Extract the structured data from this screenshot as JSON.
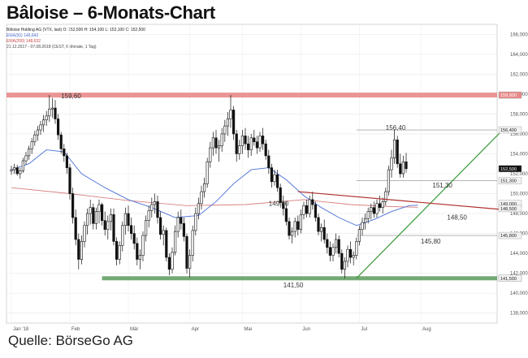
{
  "title": "Bâloise – 6-Monats-Chart",
  "source": "Quelle: BörseGo AG",
  "legend": {
    "line1": "Bâloise Holding AG (VTX, last)  O: 152,500  H: 154,100  L: 152,100  C: 152,500",
    "line2": "EMA(50)  148,843",
    "line3": "EMA(200)  148,632",
    "line4": "21.12.2017 - 07.08.2018  (CEST, 6 Monate, 1 Tag)"
  },
  "colors": {
    "resistance": "#e88a8a",
    "support": "#5a9a5a",
    "uptrend": "#3a9a3a",
    "downtrend": "#b03030",
    "ema50": "#4a6fd8",
    "ema200": "#d88080",
    "candle": "#111111",
    "price_tag": "#111111"
  },
  "chart_data": {
    "type": "candlestick",
    "title": "Bâloise – 6-Monats-Chart",
    "ylim": [
      137.0,
      167.0
    ],
    "y_ticks": [
      {
        "value": 138.0,
        "label": "138,000"
      },
      {
        "value": 140.0,
        "label": "140,000"
      },
      {
        "value": 142.0,
        "label": "142,000"
      },
      {
        "value": 144.0,
        "label": "144,000"
      },
      {
        "value": 146.0,
        "label": "146,000"
      },
      {
        "value": 148.0,
        "label": "148,000"
      },
      {
        "value": 150.0,
        "label": "150,000"
      },
      {
        "value": 152.0,
        "label": "152,000"
      },
      {
        "value": 154.0,
        "label": "154,000"
      },
      {
        "value": 156.0,
        "label": "156,000"
      },
      {
        "value": 158.0,
        "label": "158,000"
      },
      {
        "value": 160.0,
        "label": "160,000"
      },
      {
        "value": 162.0,
        "label": "162,000"
      },
      {
        "value": 164.0,
        "label": "164,000"
      },
      {
        "value": 166.0,
        "label": "166,000"
      }
    ],
    "x_ticks": [
      {
        "index": 0,
        "label": "Jan '18"
      },
      {
        "index": 20,
        "label": "Feb"
      },
      {
        "index": 40,
        "label": "Mär"
      },
      {
        "index": 61,
        "label": "Apr"
      },
      {
        "index": 79,
        "label": "Mai"
      },
      {
        "index": 99,
        "label": "Jun"
      },
      {
        "index": 119,
        "label": "Jul"
      },
      {
        "index": 140,
        "label": "Aug"
      }
    ],
    "x_count": 165,
    "candles": [
      [
        152.3,
        152.8,
        151.9,
        152.4
      ],
      [
        152.4,
        153.0,
        152.0,
        152.6
      ],
      [
        152.6,
        152.9,
        151.8,
        152.0
      ],
      [
        152.0,
        152.6,
        151.5,
        152.3
      ],
      [
        152.3,
        153.6,
        152.1,
        153.3
      ],
      [
        153.3,
        154.2,
        152.9,
        153.8
      ],
      [
        153.8,
        154.8,
        153.4,
        154.5
      ],
      [
        154.5,
        155.6,
        154.0,
        155.2
      ],
      [
        155.2,
        156.3,
        154.8,
        155.9
      ],
      [
        155.9,
        156.8,
        155.3,
        156.4
      ],
      [
        156.4,
        157.3,
        155.9,
        156.9
      ],
      [
        156.9,
        157.9,
        156.2,
        157.4
      ],
      [
        157.4,
        158.3,
        156.8,
        157.8
      ],
      [
        157.8,
        159.9,
        157.2,
        158.5
      ],
      [
        158.5,
        159.6,
        157.6,
        158.6
      ],
      [
        158.6,
        159.4,
        157.0,
        157.5
      ],
      [
        157.5,
        158.0,
        155.4,
        155.9
      ],
      [
        155.9,
        156.2,
        154.0,
        154.5
      ],
      [
        154.5,
        155.0,
        153.2,
        153.8
      ],
      [
        153.8,
        154.1,
        152.0,
        152.6
      ],
      [
        152.6,
        153.0,
        149.4,
        150.0
      ],
      [
        150.0,
        150.6,
        147.0,
        147.6
      ],
      [
        147.6,
        148.4,
        144.8,
        145.4
      ],
      [
        145.4,
        146.0,
        142.4,
        143.4
      ],
      [
        143.4,
        145.8,
        142.9,
        145.2
      ],
      [
        145.2,
        147.2,
        144.6,
        146.8
      ],
      [
        146.8,
        148.5,
        145.9,
        148.0
      ],
      [
        148.0,
        149.4,
        146.9,
        148.6
      ],
      [
        148.6,
        149.0,
        146.4,
        147.0
      ],
      [
        147.0,
        148.6,
        146.4,
        148.2
      ],
      [
        148.2,
        149.4,
        147.0,
        148.9
      ],
      [
        148.9,
        149.1,
        146.8,
        147.3
      ],
      [
        147.3,
        148.2,
        145.8,
        146.4
      ],
      [
        146.4,
        147.8,
        145.4,
        147.2
      ],
      [
        147.2,
        148.5,
        146.3,
        147.9
      ],
      [
        147.9,
        148.5,
        144.8,
        145.2
      ],
      [
        145.2,
        145.6,
        142.8,
        143.4
      ],
      [
        143.4,
        145.2,
        142.9,
        144.8
      ],
      [
        144.8,
        147.2,
        144.2,
        146.8
      ],
      [
        146.8,
        148.6,
        145.9,
        148.0
      ],
      [
        148.0,
        148.8,
        146.2,
        146.8
      ],
      [
        146.8,
        147.6,
        145.4,
        146.0
      ],
      [
        146.0,
        146.8,
        144.4,
        145.0
      ],
      [
        145.0,
        145.6,
        142.8,
        143.4
      ],
      [
        143.4,
        144.4,
        142.4,
        143.8
      ],
      [
        143.8,
        146.2,
        143.2,
        145.8
      ],
      [
        145.8,
        147.8,
        145.2,
        147.3
      ],
      [
        147.3,
        148.8,
        146.6,
        148.3
      ],
      [
        148.3,
        149.6,
        147.6,
        148.9
      ],
      [
        148.9,
        150.0,
        148.0,
        149.2
      ],
      [
        149.2,
        149.8,
        147.0,
        147.6
      ],
      [
        147.6,
        148.2,
        145.4,
        145.9
      ],
      [
        145.9,
        146.8,
        144.8,
        146.3
      ],
      [
        146.3,
        146.6,
        143.2,
        143.6
      ],
      [
        143.6,
        144.0,
        141.8,
        142.4
      ],
      [
        142.4,
        144.6,
        142.0,
        144.1
      ],
      [
        144.1,
        146.8,
        143.8,
        146.2
      ],
      [
        146.2,
        148.2,
        145.6,
        147.6
      ],
      [
        147.6,
        148.4,
        146.4,
        147.0
      ],
      [
        147.0,
        147.6,
        145.2,
        145.7
      ],
      [
        145.7,
        146.0,
        142.0,
        142.5
      ],
      [
        142.5,
        144.4,
        141.6,
        143.8
      ],
      [
        143.8,
        146.8,
        143.2,
        146.3
      ],
      [
        146.3,
        148.6,
        145.8,
        148.0
      ],
      [
        148.0,
        149.6,
        147.4,
        149.0
      ],
      [
        149.0,
        150.8,
        148.4,
        150.2
      ],
      [
        150.2,
        151.6,
        149.6,
        151.0
      ],
      [
        151.0,
        153.6,
        150.6,
        153.2
      ],
      [
        153.2,
        155.2,
        152.6,
        154.6
      ],
      [
        154.6,
        156.2,
        153.8,
        155.6
      ],
      [
        155.6,
        156.4,
        154.0,
        154.6
      ],
      [
        154.6,
        155.4,
        153.2,
        154.8
      ],
      [
        154.8,
        156.6,
        154.2,
        156.0
      ],
      [
        156.0,
        157.4,
        155.2,
        156.8
      ],
      [
        156.8,
        158.2,
        155.8,
        157.5
      ],
      [
        157.5,
        159.9,
        156.6,
        158.4
      ],
      [
        158.4,
        158.8,
        155.4,
        156.0
      ],
      [
        156.0,
        156.4,
        153.2,
        154.0
      ],
      [
        154.0,
        155.4,
        153.4,
        154.8
      ],
      [
        154.8,
        156.4,
        154.0,
        155.8
      ],
      [
        155.8,
        156.6,
        154.4,
        155.0
      ],
      [
        155.0,
        155.8,
        153.6,
        154.4
      ],
      [
        154.4,
        156.0,
        153.8,
        155.6
      ],
      [
        155.6,
        156.4,
        154.8,
        155.2
      ],
      [
        155.2,
        155.8,
        154.0,
        154.6
      ],
      [
        154.6,
        156.2,
        154.2,
        155.8
      ],
      [
        155.8,
        156.6,
        154.4,
        155.0
      ],
      [
        155.0,
        155.4,
        153.4,
        153.8
      ],
      [
        153.8,
        154.4,
        152.0,
        152.6
      ],
      [
        152.6,
        153.0,
        150.6,
        151.2
      ],
      [
        151.2,
        152.4,
        150.8,
        151.9
      ],
      [
        151.9,
        152.4,
        150.2,
        150.6
      ],
      [
        150.6,
        151.0,
        148.6,
        149.1
      ],
      [
        149.1,
        149.8,
        147.8,
        148.5
      ],
      [
        148.5,
        149.2,
        146.8,
        147.2
      ],
      [
        147.2,
        147.6,
        145.4,
        145.8
      ],
      [
        145.8,
        146.6,
        145.0,
        146.2
      ],
      [
        146.2,
        147.6,
        145.6,
        147.2
      ],
      [
        147.2,
        147.8,
        145.8,
        146.4
      ],
      [
        146.4,
        148.4,
        146.0,
        147.9
      ],
      [
        147.9,
        149.2,
        147.4,
        148.8
      ],
      [
        148.8,
        149.4,
        147.6,
        148.0
      ],
      [
        148.0,
        149.8,
        147.6,
        149.4
      ],
      [
        149.4,
        150.2,
        148.4,
        148.9
      ],
      [
        148.9,
        149.2,
        147.2,
        147.6
      ],
      [
        147.6,
        148.0,
        145.8,
        146.2
      ],
      [
        146.2,
        147.0,
        145.2,
        146.6
      ],
      [
        146.6,
        147.4,
        145.0,
        145.4
      ],
      [
        145.4,
        146.0,
        144.0,
        144.6
      ],
      [
        144.6,
        145.2,
        143.2,
        143.8
      ],
      [
        143.8,
        145.0,
        143.2,
        144.6
      ],
      [
        144.6,
        146.0,
        144.0,
        145.4
      ],
      [
        145.4,
        145.8,
        143.6,
        144.0
      ],
      [
        144.0,
        144.4,
        142.0,
        142.4
      ],
      [
        142.4,
        143.6,
        141.5,
        143.2
      ],
      [
        143.2,
        144.8,
        142.6,
        144.4
      ],
      [
        144.4,
        145.2,
        143.0,
        143.6
      ],
      [
        143.6,
        144.2,
        142.8,
        143.8
      ],
      [
        143.8,
        145.6,
        143.4,
        145.2
      ],
      [
        145.2,
        146.8,
        144.8,
        146.4
      ],
      [
        146.4,
        147.6,
        145.8,
        147.1
      ],
      [
        147.1,
        148.0,
        146.4,
        147.5
      ],
      [
        147.5,
        148.6,
        147.0,
        148.2
      ],
      [
        148.2,
        149.0,
        147.4,
        148.6
      ],
      [
        148.6,
        149.2,
        147.6,
        148.0
      ],
      [
        148.0,
        149.4,
        147.6,
        149.0
      ],
      [
        149.0,
        149.8,
        148.2,
        148.6
      ],
      [
        148.6,
        149.6,
        148.0,
        149.2
      ],
      [
        149.2,
        150.6,
        148.8,
        150.2
      ],
      [
        150.2,
        152.8,
        149.8,
        152.4
      ],
      [
        152.4,
        154.4,
        151.6,
        153.6
      ],
      [
        153.6,
        156.4,
        153.0,
        155.4
      ],
      [
        155.4,
        155.8,
        152.6,
        153.0
      ],
      [
        153.0,
        154.0,
        151.6,
        152.0
      ],
      [
        152.0,
        153.8,
        151.6,
        153.2
      ],
      [
        153.2,
        154.1,
        152.1,
        152.5
      ]
    ],
    "ema50": [
      [
        0,
        152.4
      ],
      [
        6,
        153.0
      ],
      [
        12,
        154.4
      ],
      [
        18,
        154.2
      ],
      [
        24,
        152.0
      ],
      [
        32,
        150.6
      ],
      [
        40,
        149.4
      ],
      [
        48,
        148.6
      ],
      [
        56,
        147.6
      ],
      [
        64,
        147.8
      ],
      [
        70,
        149.2
      ],
      [
        76,
        151.0
      ],
      [
        82,
        152.4
      ],
      [
        88,
        152.6
      ],
      [
        94,
        151.4
      ],
      [
        100,
        149.8
      ],
      [
        106,
        148.6
      ],
      [
        112,
        147.6
      ],
      [
        118,
        146.8
      ],
      [
        124,
        147.4
      ],
      [
        130,
        148.2
      ],
      [
        136,
        148.8
      ],
      [
        139,
        148.84
      ]
    ],
    "ema200": [
      [
        0,
        150.6
      ],
      [
        20,
        150.0
      ],
      [
        40,
        149.3
      ],
      [
        60,
        148.8
      ],
      [
        80,
        148.9
      ],
      [
        100,
        149.4
      ],
      [
        116,
        148.9
      ],
      [
        130,
        148.7
      ],
      [
        139,
        148.63
      ]
    ],
    "horizontal_levels": [
      {
        "value": 159.9,
        "label": "159,90",
        "tag": "159,900",
        "style": "resistance"
      },
      {
        "value": 141.5,
        "label": "141,50",
        "tag": "141,500",
        "style": "support"
      },
      {
        "value": 156.4,
        "label": "156,40",
        "tag": "156,400",
        "style": "thin"
      },
      {
        "value": 151.3,
        "label": "151,30",
        "tag": "151,300",
        "style": "thin"
      },
      {
        "value": 145.8,
        "label": "145,80",
        "tag": "145,800",
        "style": "thin"
      }
    ],
    "extra_tags": [
      {
        "value": 149.0,
        "tag": "149,000"
      },
      {
        "value": 148.5,
        "tag": "148,500"
      },
      {
        "value": 141.5,
        "tag": "141,500"
      }
    ],
    "last_price": {
      "value": 152.5,
      "tag": "152,500"
    },
    "annotations": [
      {
        "x": 17,
        "y": 159.6,
        "text": "159,60"
      },
      {
        "x": 88,
        "y": 148.8,
        "text": "149,80"
      },
      {
        "x": 128,
        "y": 156.4,
        "text": "156,40"
      },
      {
        "x": 144,
        "y": 150.6,
        "text": "151,30"
      },
      {
        "x": 149,
        "y": 147.4,
        "text": "148,50"
      },
      {
        "x": 140,
        "y": 145.0,
        "text": "145,80"
      },
      {
        "x": 93,
        "y": 140.6,
        "text": "141,50"
      }
    ],
    "trendlines": [
      {
        "name": "uptrend",
        "from": [
          118,
          141.5
        ],
        "to": [
          168,
          156.4
        ]
      },
      {
        "name": "downtrend",
        "from": [
          98,
          150.2
        ],
        "to": [
          168,
          148.4
        ]
      }
    ]
  }
}
